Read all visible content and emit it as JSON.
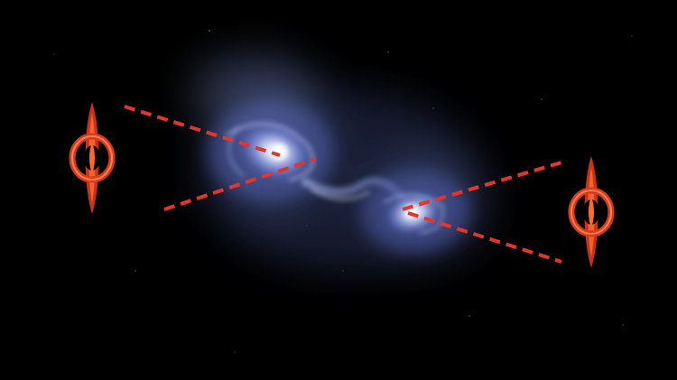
{
  "scene": {
    "description_colors": {
      "background": "#000000",
      "galaxy_glow": "#9fb3ff",
      "galaxy_core": "#ffffff",
      "sightline": "#e2362a",
      "icon_outer": "#d93a1f",
      "icon_inner": "#ff7a3a"
    },
    "icons": [
      {
        "name": "black-hole-icon-left"
      },
      {
        "name": "black-hole-icon-right"
      }
    ],
    "sightlines": [
      {
        "name": "sightline-left-upper"
      },
      {
        "name": "sightline-left-lower"
      },
      {
        "name": "sightline-right-upper"
      },
      {
        "name": "sightline-right-lower"
      }
    ]
  }
}
